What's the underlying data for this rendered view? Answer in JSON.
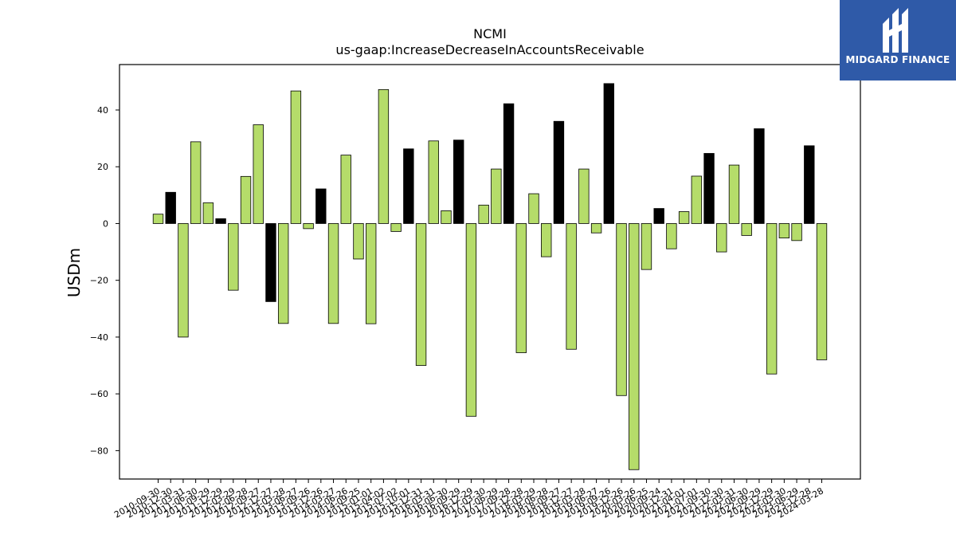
{
  "chart_data": {
    "type": "bar",
    "title": "NCMI",
    "subtitle": "us-gaap:IncreaseDecreaseInAccountsReceivable",
    "xlabel": "",
    "ylabel": "USDm",
    "ylim": [
      -90,
      56
    ],
    "yticks": [
      -80,
      -60,
      -40,
      -20,
      0,
      20,
      40
    ],
    "grid": false,
    "colors": {
      "default": "#b5dc6a",
      "highlight": "#000000",
      "edge": "#000000"
    },
    "categories": [
      "2010-09-30",
      "2010-12-30",
      "2011-03-31",
      "2011-06-30",
      "2011-09-29",
      "2011-12-29",
      "2012-03-29",
      "2012-06-28",
      "2012-09-27",
      "2012-12-27",
      "2013-03-28",
      "2013-06-27",
      "2013-09-26",
      "2013-12-26",
      "2014-03-27",
      "2014-06-26",
      "2014-09-25",
      "2015-01-01",
      "2015-04-02",
      "2015-07-02",
      "2015-10-01",
      "2015-12-31",
      "2016-03-31",
      "2016-06-30",
      "2016-09-29",
      "2016-12-29",
      "2017-03-30",
      "2017-06-29",
      "2017-09-28",
      "2017-12-28",
      "2018-03-29",
      "2018-06-28",
      "2018-09-27",
      "2018-12-27",
      "2019-03-28",
      "2019-06-27",
      "2019-09-26",
      "2019-12-26",
      "2020-03-26",
      "2020-06-25",
      "2020-09-24",
      "2020-12-31",
      "2021-04-01",
      "2021-07-01",
      "2021-09-30",
      "2021-12-30",
      "2022-03-31",
      "2022-06-30",
      "2022-09-29",
      "2022-12-29",
      "2023-03-30",
      "2023-06-29",
      "2023-12-28",
      "2024-03-28"
    ],
    "values": [
      3.3,
      11.0,
      -40.0,
      28.8,
      7.3,
      1.7,
      -23.5,
      16.6,
      34.8,
      -27.5,
      -35.2,
      46.7,
      -1.8,
      12.2,
      -35.2,
      24.1,
      -12.5,
      -35.3,
      47.2,
      -2.8,
      26.3,
      -50.0,
      29.1,
      4.5,
      29.4,
      -67.9,
      6.5,
      19.2,
      42.2,
      -45.5,
      10.5,
      -11.7,
      36.0,
      -44.3,
      19.2,
      -3.3,
      49.3,
      -60.6,
      -86.7,
      -16.2,
      5.3,
      -8.9,
      4.2,
      16.7,
      24.7,
      -10.0,
      20.6,
      -4.2,
      33.4,
      -53.0,
      -5.1,
      -6.0,
      27.4,
      -48.0
    ],
    "highlighted": [
      false,
      true,
      false,
      false,
      false,
      true,
      false,
      false,
      false,
      true,
      false,
      false,
      false,
      true,
      false,
      false,
      false,
      false,
      false,
      false,
      true,
      false,
      false,
      false,
      true,
      false,
      false,
      false,
      true,
      false,
      false,
      false,
      true,
      false,
      false,
      false,
      true,
      false,
      false,
      false,
      true,
      false,
      false,
      false,
      true,
      false,
      false,
      false,
      true,
      false,
      false,
      false,
      true,
      false
    ]
  },
  "logo": {
    "text": "MIDGARD FINANCE",
    "color": "#2f5aa8"
  }
}
